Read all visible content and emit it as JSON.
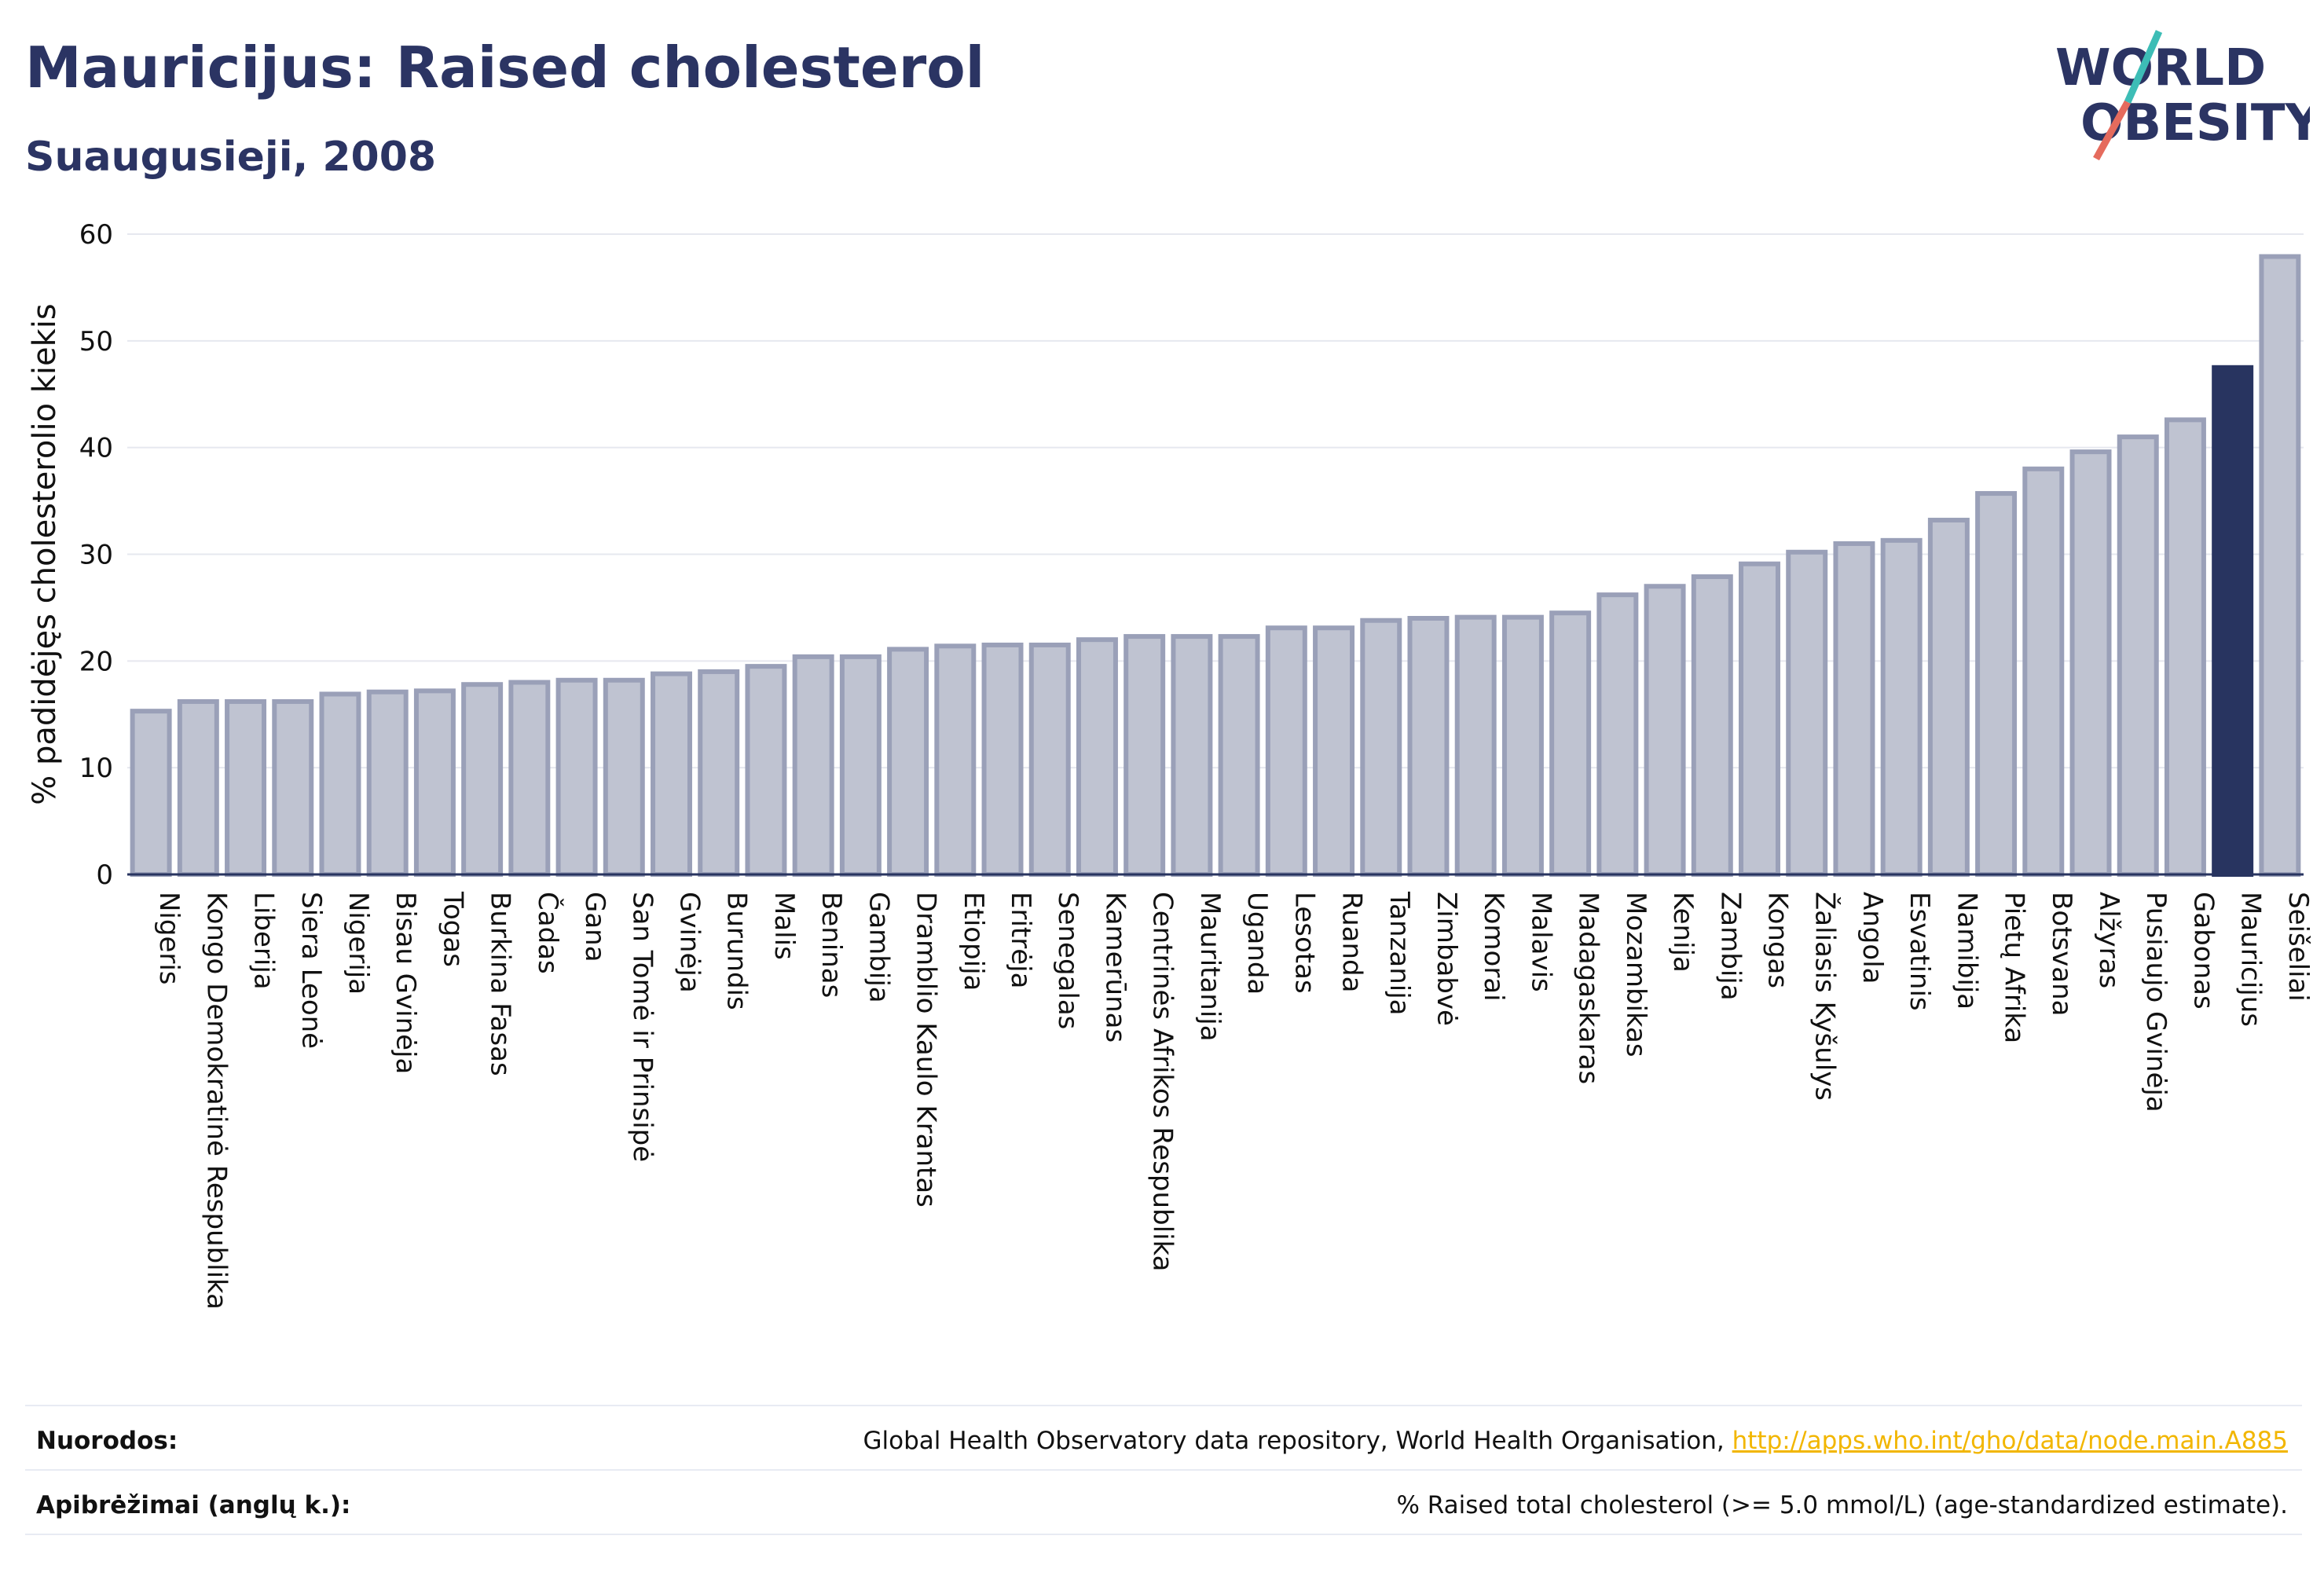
{
  "header": {
    "title": "Mauricijus: Raised cholesterol",
    "subtitle": "Suaugusieji, 2008",
    "logo_line1": "WORLD",
    "logo_line2": "OBESITY"
  },
  "chart_data": {
    "type": "bar",
    "ylabel": "% padidėjęs cholesterolio kiekis",
    "ylim": [
      0,
      60
    ],
    "yticks": [
      0,
      10,
      20,
      30,
      40,
      50,
      60
    ],
    "grid": true,
    "highlight": "Mauricijus",
    "categories": [
      "Nigeris",
      "Kongo Demokratinė Respublika",
      "Liberija",
      "Siera Leonė",
      "Nigerija",
      "Bisau Gvinėja",
      "Togas",
      "Burkina Fasas",
      "Čadas",
      "Gana",
      "San Tomė ir Prinsipė",
      "Gvinėja",
      "Burundis",
      "Malis",
      "Beninas",
      "Gambija",
      "Dramblio Kaulo Krantas",
      "Etiopija",
      "Eritrėja",
      "Senegalas",
      "Kamerūnas",
      "Centrinės Afrikos Respublika",
      "Mauritanija",
      "Uganda",
      "Lesotas",
      "Ruanda",
      "Tanzanija",
      "Zimbabvė",
      "Komorai",
      "Malavis",
      "Madagaskaras",
      "Mozambikas",
      "Kenija",
      "Zambija",
      "Kongas",
      "Žaliasis Kyšulys",
      "Angola",
      "Esvatinis",
      "Namibija",
      "Pietų Afrika",
      "Botsvana",
      "Alžyras",
      "Pusiaujo Gvinėja",
      "Gabonas",
      "Mauricijus",
      "Seišeliai"
    ],
    "values": [
      15.3,
      16.2,
      16.2,
      16.2,
      16.9,
      17.1,
      17.2,
      17.8,
      18.0,
      18.2,
      18.2,
      18.8,
      19.0,
      19.5,
      20.4,
      20.4,
      21.1,
      21.4,
      21.5,
      21.5,
      22.0,
      22.3,
      22.3,
      22.3,
      23.1,
      23.1,
      23.8,
      24.0,
      24.1,
      24.1,
      24.5,
      26.2,
      27.0,
      27.9,
      29.1,
      30.2,
      31.0,
      31.3,
      33.2,
      35.7,
      38.0,
      39.6,
      41.0,
      42.6,
      47.5,
      57.9
    ],
    "colors": {
      "bar_fill": "#bfc3d1",
      "bar_stroke": "#9aa0b8",
      "highlight_fill": "#283460",
      "grid": "#e6e8ef",
      "text": "#111111"
    }
  },
  "footer": {
    "sources_label": "Nuorodos:",
    "sources_text": "Global Health Observatory data repository, World Health Organisation, ",
    "sources_link": "http://apps.who.int/gho/data/node.main.A885",
    "definitions_label": "Apibrėžimai (anglų k.):",
    "definitions_text": "% Raised total cholesterol (>= 5.0 mmol/L) (age-standardized estimate)."
  }
}
